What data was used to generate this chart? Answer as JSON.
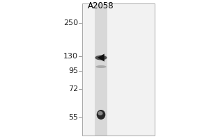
{
  "bg_color": "#ffffff",
  "outer_bg": "#d8d8d8",
  "panel_bg": "#f0f0f0",
  "lane_color": "#d8d8d8",
  "cell_line_label": "A2058",
  "mw_markers": [
    {
      "label": "250",
      "yf": 0.835
    },
    {
      "label": "130",
      "yf": 0.595
    },
    {
      "label": "95",
      "yf": 0.49
    },
    {
      "label": "72",
      "yf": 0.36
    },
    {
      "label": "55",
      "yf": 0.155
    }
  ],
  "band_main_yf": 0.585,
  "band_main_color": "#505050",
  "band_faint_yf": 0.52,
  "band_faint_color": "#aaaaaa",
  "band_lower_yf": 0.175,
  "band_lower_color": "#282828",
  "band_lower_bright_color": "#888888",
  "arrow_color": "#111111",
  "border_color": "#888888",
  "font_size_label": 8,
  "font_size_mw": 8,
  "font_size_cell": 8.5
}
